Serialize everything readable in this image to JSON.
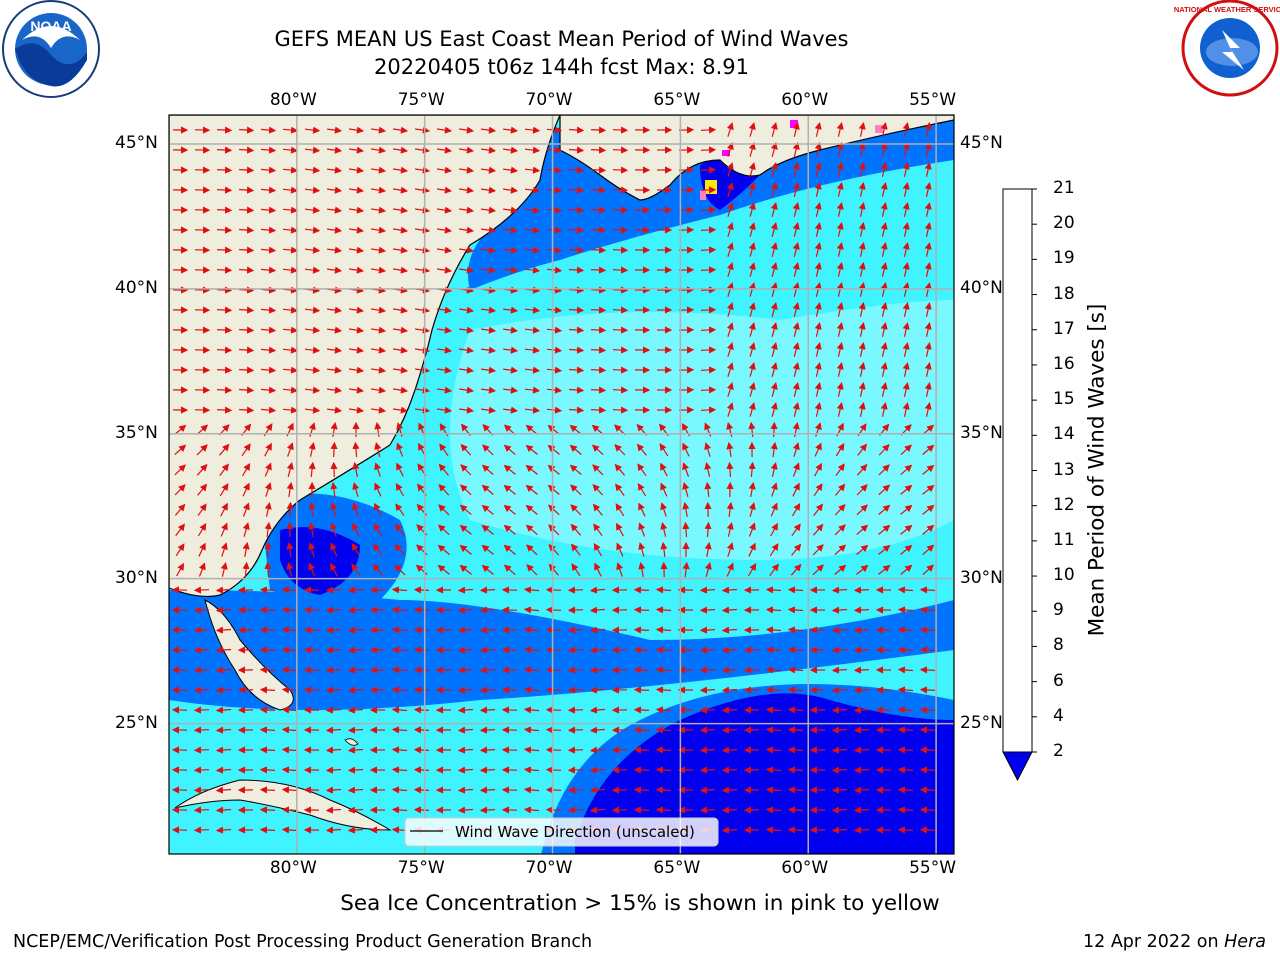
{
  "title": {
    "line1": "GEFS MEAN US East Coast Mean Period of Wind Waves",
    "line2": "20220405 t06z 144h fcst   Max: 8.91"
  },
  "map": {
    "lon_labels": [
      "80°W",
      "75°W",
      "70°W",
      "65°W",
      "60°W",
      "55°W"
    ],
    "lat_labels": [
      "45°N",
      "40°N",
      "35°N",
      "30°N",
      "25°N"
    ],
    "lon_range": [
      -85,
      -54.3
    ],
    "lat_range": [
      20.5,
      46
    ],
    "legend": "Wind Wave Direction (unscaled)",
    "land_color": "#efedde",
    "arrow_color": "#e01010",
    "grid_color": "#b0b0b0"
  },
  "colorbar": {
    "label": "Mean Period of Wind Waves [s]",
    "ticks": [
      "2",
      "4",
      "6",
      "8",
      "9",
      "10",
      "11",
      "12",
      "13",
      "14",
      "15",
      "16",
      "17",
      "18",
      "19",
      "20",
      "21"
    ],
    "colors": [
      "#0000ee",
      "#0074ff",
      "#00eeff",
      "#40f4ff",
      "#a8fcff",
      "#50f080",
      "#00e000",
      "#50d800",
      "#a0e000",
      "#c8f000",
      "#eeee00",
      "#ffe800",
      "#ffc000",
      "#ff9800",
      "#ff7000",
      "#ff4000",
      "#ff0000"
    ]
  },
  "logos": {
    "left": "NOAA",
    "right": "NATIONAL WEATHER SERVICE"
  },
  "notes": {
    "sea_ice": "Sea Ice Concentration > 15% is shown in pink to yellow",
    "footer_left": "NCEP/EMC/Verification Post Processing Product Generation Branch",
    "footer_date": "12 Apr 2022 on ",
    "footer_host": "Hera"
  }
}
